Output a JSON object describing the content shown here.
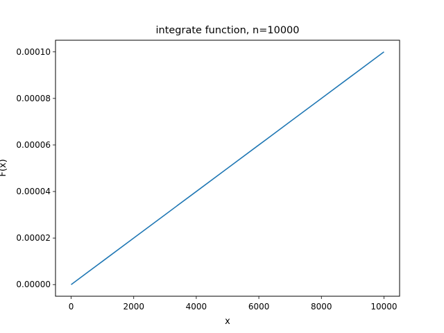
{
  "chart_data": {
    "type": "line",
    "title": "integrate function, n=10000",
    "xlabel": "x",
    "ylabel": "F(x)",
    "xlim": [
      -500,
      10500
    ],
    "ylim": [
      -5e-06,
      0.000105
    ],
    "xticks": [
      0,
      2000,
      4000,
      6000,
      8000,
      10000
    ],
    "xtick_labels": [
      "0",
      "2000",
      "4000",
      "6000",
      "8000",
      "10000"
    ],
    "yticks": [
      0,
      2e-05,
      4e-05,
      6e-05,
      8e-05,
      0.0001
    ],
    "ytick_labels": [
      "0.00000",
      "0.00002",
      "0.00004",
      "0.00006",
      "0.00008",
      "0.00010"
    ],
    "grid": false,
    "series": [
      {
        "color": "#1f77b4",
        "x": [
          0,
          1000,
          2000,
          3000,
          4000,
          5000,
          6000,
          7000,
          8000,
          9000,
          10000
        ],
        "y": [
          0,
          1e-05,
          2e-05,
          3e-05,
          4e-05,
          5e-05,
          6e-05,
          7e-05,
          8e-05,
          9e-05,
          0.0001
        ]
      }
    ]
  }
}
